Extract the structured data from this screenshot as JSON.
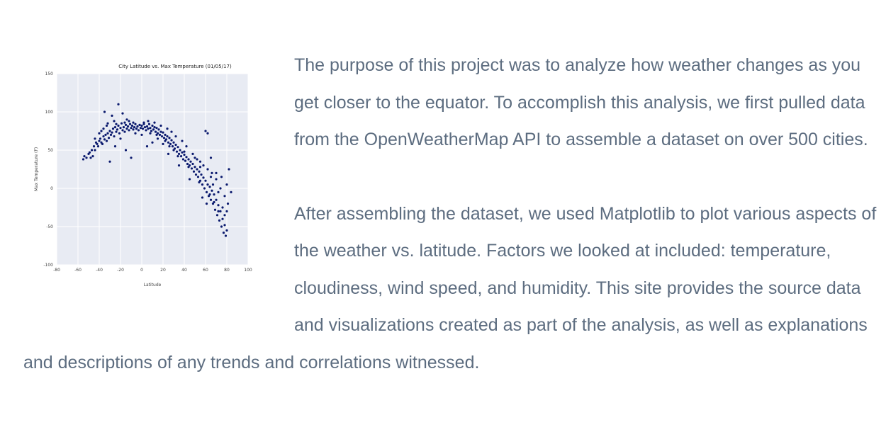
{
  "chart_data": {
    "type": "scatter",
    "title": "City Latitude vs. Max Temperature (01/05/17)",
    "xlabel": "Latitude",
    "ylabel": "Max Temperature (F)",
    "xlim": [
      -80,
      100
    ],
    "ylim": [
      -100,
      150
    ],
    "xticks": [
      "-80",
      "-60",
      "-40",
      "-20",
      "0",
      "20",
      "40",
      "60",
      "80",
      "100"
    ],
    "yticks": [
      "150",
      "100",
      "50",
      "0",
      "-50",
      "-100"
    ],
    "grid": true,
    "background_color": "#e8ebf3",
    "point_color": "#0b1a6e",
    "points": [
      [
        -55,
        38
      ],
      [
        -54,
        42
      ],
      [
        -52,
        40
      ],
      [
        -50,
        45
      ],
      [
        -49,
        47
      ],
      [
        -48,
        40
      ],
      [
        -47,
        50
      ],
      [
        -46,
        42
      ],
      [
        -45,
        55
      ],
      [
        -44,
        50
      ],
      [
        -43,
        60
      ],
      [
        -42,
        58
      ],
      [
        -41,
        55
      ],
      [
        -40,
        62
      ],
      [
        -39,
        65
      ],
      [
        -38,
        60
      ],
      [
        -37,
        58
      ],
      [
        -36,
        68
      ],
      [
        -35,
        64
      ],
      [
        -34,
        70
      ],
      [
        -33,
        62
      ],
      [
        -32,
        72
      ],
      [
        -31,
        66
      ],
      [
        -30,
        75
      ],
      [
        -29,
        70
      ],
      [
        -28,
        73
      ],
      [
        -27,
        78
      ],
      [
        -26,
        68
      ],
      [
        -25,
        80
      ],
      [
        -24,
        74
      ],
      [
        -23,
        77
      ],
      [
        -22,
        82
      ],
      [
        -21,
        72
      ],
      [
        -20,
        79
      ],
      [
        -19,
        85
      ],
      [
        -18,
        76
      ],
      [
        -17,
        80
      ],
      [
        -16,
        74
      ],
      [
        -15,
        83
      ],
      [
        -14,
        78
      ],
      [
        -13,
        81
      ],
      [
        -12,
        76
      ],
      [
        -11,
        84
      ],
      [
        -10,
        79
      ],
      [
        -9,
        82
      ],
      [
        -8,
        77
      ],
      [
        -7,
        80
      ],
      [
        -6,
        84
      ],
      [
        -5,
        78
      ],
      [
        -4,
        81
      ],
      [
        -3,
        76
      ],
      [
        -2,
        83
      ],
      [
        -1,
        79
      ],
      [
        0,
        82
      ],
      [
        1,
        78
      ],
      [
        2,
        84
      ],
      [
        3,
        80
      ],
      [
        4,
        76
      ],
      [
        5,
        81
      ],
      [
        6,
        78
      ],
      [
        7,
        84
      ],
      [
        8,
        79
      ],
      [
        9,
        75
      ],
      [
        10,
        82
      ],
      [
        11,
        77
      ],
      [
        12,
        80
      ],
      [
        13,
        74
      ],
      [
        14,
        79
      ],
      [
        15,
        72
      ],
      [
        16,
        77
      ],
      [
        17,
        70
      ],
      [
        18,
        74
      ],
      [
        19,
        68
      ],
      [
        20,
        73
      ],
      [
        21,
        66
      ],
      [
        22,
        70
      ],
      [
        23,
        64
      ],
      [
        24,
        68
      ],
      [
        25,
        60
      ],
      [
        26,
        66
      ],
      [
        27,
        58
      ],
      [
        28,
        63
      ],
      [
        29,
        55
      ],
      [
        30,
        60
      ],
      [
        31,
        52
      ],
      [
        32,
        57
      ],
      [
        33,
        48
      ],
      [
        34,
        54
      ],
      [
        35,
        45
      ],
      [
        36,
        50
      ],
      [
        37,
        42
      ],
      [
        38,
        47
      ],
      [
        39,
        38
      ],
      [
        40,
        44
      ],
      [
        41,
        36
      ],
      [
        42,
        41
      ],
      [
        43,
        32
      ],
      [
        44,
        38
      ],
      [
        45,
        30
      ],
      [
        46,
        35
      ],
      [
        47,
        26
      ],
      [
        48,
        32
      ],
      [
        49,
        22
      ],
      [
        50,
        28
      ],
      [
        51,
        18
      ],
      [
        52,
        25
      ],
      [
        53,
        15
      ],
      [
        54,
        22
      ],
      [
        55,
        10
      ],
      [
        56,
        18
      ],
      [
        57,
        5
      ],
      [
        58,
        14
      ],
      [
        59,
        0
      ],
      [
        60,
        10
      ],
      [
        61,
        -5
      ],
      [
        62,
        5
      ],
      [
        63,
        -10
      ],
      [
        64,
        2
      ],
      [
        65,
        -15
      ],
      [
        66,
        -3
      ],
      [
        67,
        -20
      ],
      [
        68,
        -8
      ],
      [
        69,
        -28
      ],
      [
        70,
        -15
      ],
      [
        71,
        -35
      ],
      [
        72,
        -22
      ],
      [
        73,
        -42
      ],
      [
        74,
        -30
      ],
      [
        75,
        -50
      ],
      [
        76,
        -40
      ],
      [
        77,
        -58
      ],
      [
        78,
        -48
      ],
      [
        79,
        -62
      ],
      [
        80,
        -55
      ],
      [
        -35,
        100
      ],
      [
        -28,
        95
      ],
      [
        -22,
        110
      ],
      [
        -18,
        98
      ],
      [
        -14,
        90
      ],
      [
        -25,
        55
      ],
      [
        -30,
        35
      ],
      [
        -15,
        50
      ],
      [
        -10,
        40
      ],
      [
        5,
        55
      ],
      [
        10,
        60
      ],
      [
        25,
        45
      ],
      [
        35,
        30
      ],
      [
        45,
        12
      ],
      [
        55,
        35
      ],
      [
        60,
        75
      ],
      [
        62,
        72
      ],
      [
        65,
        40
      ],
      [
        70,
        20
      ],
      [
        75,
        15
      ],
      [
        80,
        5
      ],
      [
        82,
        25
      ],
      [
        84,
        -5
      ],
      [
        -38,
        75
      ],
      [
        -33,
        82
      ],
      [
        -26,
        88
      ],
      [
        -20,
        65
      ],
      [
        -12,
        88
      ],
      [
        -6,
        72
      ],
      [
        0,
        70
      ],
      [
        6,
        88
      ],
      [
        12,
        86
      ],
      [
        18,
        82
      ],
      [
        24,
        78
      ],
      [
        28,
        74
      ],
      [
        32,
        68
      ],
      [
        38,
        62
      ],
      [
        42,
        55
      ],
      [
        48,
        45
      ],
      [
        52,
        38
      ],
      [
        58,
        30
      ],
      [
        62,
        25
      ],
      [
        66,
        20
      ],
      [
        70,
        12
      ],
      [
        74,
        0
      ],
      [
        78,
        -10
      ],
      [
        80,
        -30
      ],
      [
        15,
        65
      ],
      [
        20,
        58
      ],
      [
        30,
        50
      ],
      [
        40,
        48
      ],
      [
        50,
        40
      ],
      [
        55,
        28
      ],
      [
        65,
        15
      ],
      [
        72,
        -5
      ],
      [
        -44,
        65
      ],
      [
        -40,
        72
      ],
      [
        -36,
        78
      ],
      [
        -32,
        85
      ],
      [
        -24,
        84
      ],
      [
        -16,
        86
      ],
      [
        -8,
        86
      ],
      [
        2,
        86
      ],
      [
        8,
        72
      ],
      [
        14,
        70
      ],
      [
        22,
        62
      ],
      [
        26,
        55
      ],
      [
        34,
        42
      ],
      [
        44,
        28
      ],
      [
        54,
        8
      ],
      [
        64,
        -8
      ],
      [
        68,
        -18
      ],
      [
        72,
        -30
      ],
      [
        76,
        -25
      ],
      [
        78,
        -35
      ],
      [
        81,
        -20
      ],
      [
        67,
        5
      ],
      [
        61,
        -20
      ],
      [
        57,
        -12
      ]
    ]
  },
  "text": {
    "paragraph1": "The purpose of this project was to analyze how weather changes as you get closer to the equator. To accomplish this analysis, we first pulled data from the OpenWeatherMap API to assemble a dataset on over 500 cities.",
    "paragraph2": "After assembling the dataset, we used Matplotlib to plot various aspects of the weather vs. latitude. Factors we looked at included: temperature, cloudiness, wind speed, and humidity. This site provides the source data and visualizations created as part of the analysis, as well as explanations and descriptions of any trends and correlations witnessed."
  },
  "colors": {
    "body_text": "#5d6d80"
  }
}
